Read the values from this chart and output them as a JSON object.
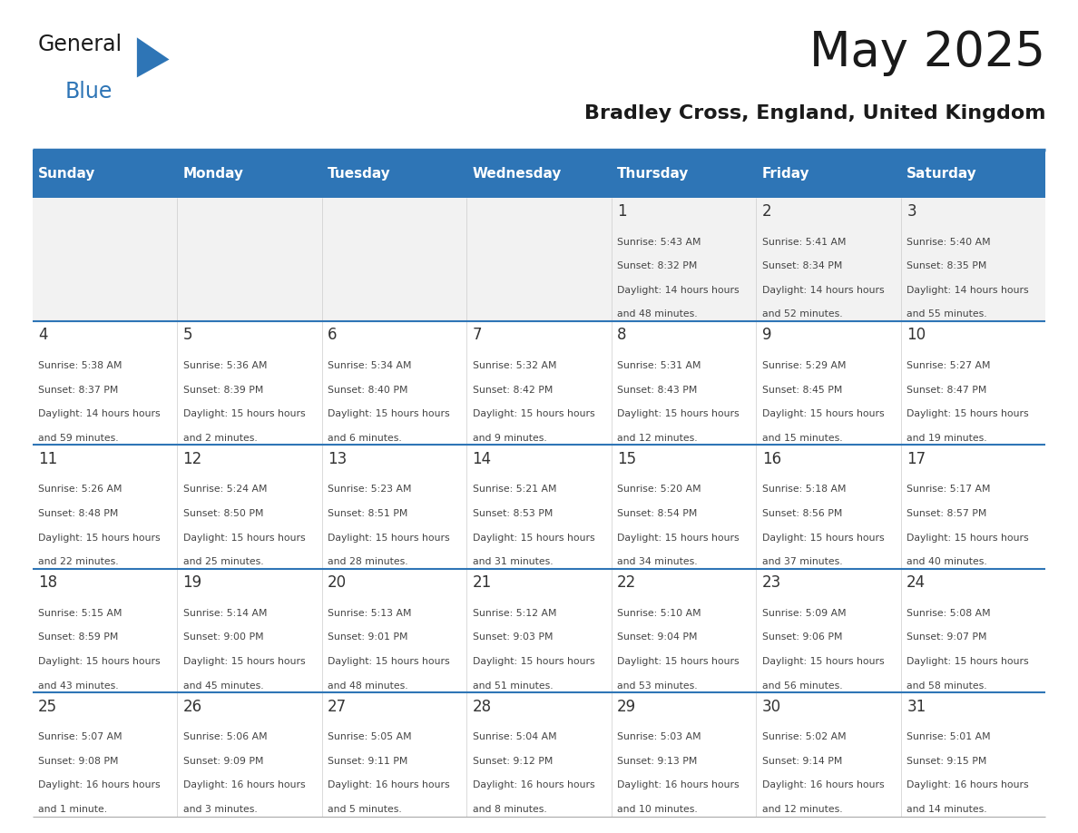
{
  "title": "May 2025",
  "subtitle": "Bradley Cross, England, United Kingdom",
  "header_bg_color": "#2E75B6",
  "header_text_color": "#FFFFFF",
  "weekdays": [
    "Sunday",
    "Monday",
    "Tuesday",
    "Wednesday",
    "Thursday",
    "Friday",
    "Saturday"
  ],
  "bg_color": "#FFFFFF",
  "cell_alt_color": "#F2F2F2",
  "grid_color": "#2E75B6",
  "day_number_color": "#333333",
  "cell_text_color": "#444444",
  "logo_general_color": "#1a1a1a",
  "logo_blue_color": "#2E75B6",
  "calendar": [
    [
      null,
      null,
      null,
      null,
      {
        "day": 1,
        "sunrise": "5:43 AM",
        "sunset": "8:32 PM",
        "daylight": "14 hours and 48 minutes"
      },
      {
        "day": 2,
        "sunrise": "5:41 AM",
        "sunset": "8:34 PM",
        "daylight": "14 hours and 52 minutes"
      },
      {
        "day": 3,
        "sunrise": "5:40 AM",
        "sunset": "8:35 PM",
        "daylight": "14 hours and 55 minutes"
      }
    ],
    [
      {
        "day": 4,
        "sunrise": "5:38 AM",
        "sunset": "8:37 PM",
        "daylight": "14 hours and 59 minutes"
      },
      {
        "day": 5,
        "sunrise": "5:36 AM",
        "sunset": "8:39 PM",
        "daylight": "15 hours and 2 minutes"
      },
      {
        "day": 6,
        "sunrise": "5:34 AM",
        "sunset": "8:40 PM",
        "daylight": "15 hours and 6 minutes"
      },
      {
        "day": 7,
        "sunrise": "5:32 AM",
        "sunset": "8:42 PM",
        "daylight": "15 hours and 9 minutes"
      },
      {
        "day": 8,
        "sunrise": "5:31 AM",
        "sunset": "8:43 PM",
        "daylight": "15 hours and 12 minutes"
      },
      {
        "day": 9,
        "sunrise": "5:29 AM",
        "sunset": "8:45 PM",
        "daylight": "15 hours and 15 minutes"
      },
      {
        "day": 10,
        "sunrise": "5:27 AM",
        "sunset": "8:47 PM",
        "daylight": "15 hours and 19 minutes"
      }
    ],
    [
      {
        "day": 11,
        "sunrise": "5:26 AM",
        "sunset": "8:48 PM",
        "daylight": "15 hours and 22 minutes"
      },
      {
        "day": 12,
        "sunrise": "5:24 AM",
        "sunset": "8:50 PM",
        "daylight": "15 hours and 25 minutes"
      },
      {
        "day": 13,
        "sunrise": "5:23 AM",
        "sunset": "8:51 PM",
        "daylight": "15 hours and 28 minutes"
      },
      {
        "day": 14,
        "sunrise": "5:21 AM",
        "sunset": "8:53 PM",
        "daylight": "15 hours and 31 minutes"
      },
      {
        "day": 15,
        "sunrise": "5:20 AM",
        "sunset": "8:54 PM",
        "daylight": "15 hours and 34 minutes"
      },
      {
        "day": 16,
        "sunrise": "5:18 AM",
        "sunset": "8:56 PM",
        "daylight": "15 hours and 37 minutes"
      },
      {
        "day": 17,
        "sunrise": "5:17 AM",
        "sunset": "8:57 PM",
        "daylight": "15 hours and 40 minutes"
      }
    ],
    [
      {
        "day": 18,
        "sunrise": "5:15 AM",
        "sunset": "8:59 PM",
        "daylight": "15 hours and 43 minutes"
      },
      {
        "day": 19,
        "sunrise": "5:14 AM",
        "sunset": "9:00 PM",
        "daylight": "15 hours and 45 minutes"
      },
      {
        "day": 20,
        "sunrise": "5:13 AM",
        "sunset": "9:01 PM",
        "daylight": "15 hours and 48 minutes"
      },
      {
        "day": 21,
        "sunrise": "5:12 AM",
        "sunset": "9:03 PM",
        "daylight": "15 hours and 51 minutes"
      },
      {
        "day": 22,
        "sunrise": "5:10 AM",
        "sunset": "9:04 PM",
        "daylight": "15 hours and 53 minutes"
      },
      {
        "day": 23,
        "sunrise": "5:09 AM",
        "sunset": "9:06 PM",
        "daylight": "15 hours and 56 minutes"
      },
      {
        "day": 24,
        "sunrise": "5:08 AM",
        "sunset": "9:07 PM",
        "daylight": "15 hours and 58 minutes"
      }
    ],
    [
      {
        "day": 25,
        "sunrise": "5:07 AM",
        "sunset": "9:08 PM",
        "daylight": "16 hours and 1 minute"
      },
      {
        "day": 26,
        "sunrise": "5:06 AM",
        "sunset": "9:09 PM",
        "daylight": "16 hours and 3 minutes"
      },
      {
        "day": 27,
        "sunrise": "5:05 AM",
        "sunset": "9:11 PM",
        "daylight": "16 hours and 5 minutes"
      },
      {
        "day": 28,
        "sunrise": "5:04 AM",
        "sunset": "9:12 PM",
        "daylight": "16 hours and 8 minutes"
      },
      {
        "day": 29,
        "sunrise": "5:03 AM",
        "sunset": "9:13 PM",
        "daylight": "16 hours and 10 minutes"
      },
      {
        "day": 30,
        "sunrise": "5:02 AM",
        "sunset": "9:14 PM",
        "daylight": "16 hours and 12 minutes"
      },
      {
        "day": 31,
        "sunrise": "5:01 AM",
        "sunset": "9:15 PM",
        "daylight": "16 hours and 14 minutes"
      }
    ]
  ]
}
